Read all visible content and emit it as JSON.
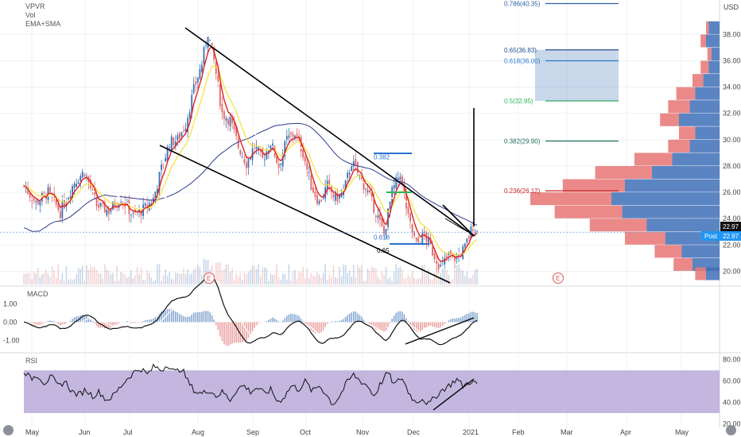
{
  "header": {
    "symbol": "VPVR",
    "vol": "Vol",
    "ema": "EMA+SMA"
  },
  "colors": {
    "up": "#3a6fb5",
    "down": "#e06666",
    "ema_fast": "#e0201e",
    "ema_slow": "#f2e233",
    "sma_short": "#ffffff",
    "sma_long": "#2f3a8f",
    "rsi_band": "#b9a9d9",
    "vp_up": "#3e6fb8",
    "vp_down": "#e77474"
  },
  "chart_data": [
    {
      "type": "candlestick",
      "x_ticks": [
        "May",
        "Jun",
        "Jul",
        "Aug",
        "Sep",
        "Oct",
        "Nov",
        "Dec",
        "2021",
        "Feb",
        "Mar",
        "Apr",
        "May"
      ],
      "y_ticks": [
        20.0,
        22.0,
        24.0,
        26.0,
        28.0,
        30.0,
        32.0,
        34.0,
        36.0,
        38.0
      ],
      "ylim": [
        19,
        40.5
      ],
      "axis_label": "USD",
      "last_price": "22.97",
      "post_label": "Post",
      "post_price": "22.97",
      "price_path": [
        [
          0,
          26.5
        ],
        [
          6,
          25.2
        ],
        [
          12,
          26.0
        ],
        [
          18,
          24.5
        ],
        [
          25,
          26.8
        ],
        [
          30,
          27.6
        ],
        [
          36,
          25.0
        ],
        [
          42,
          24.6
        ],
        [
          48,
          25.6
        ],
        [
          54,
          24.2
        ],
        [
          60,
          24.8
        ],
        [
          64,
          25.5
        ],
        [
          68,
          27.8
        ],
        [
          72,
          29.8
        ],
        [
          76,
          30.0
        ],
        [
          80,
          31.2
        ],
        [
          84,
          33.8
        ],
        [
          88,
          35.8
        ],
        [
          91,
          38.2
        ],
        [
          94,
          36.0
        ],
        [
          98,
          32.0
        ],
        [
          102,
          31.5
        ],
        [
          106,
          29.5
        ],
        [
          110,
          28.2
        ],
        [
          114,
          29.5
        ],
        [
          118,
          28.5
        ],
        [
          122,
          29.8
        ],
        [
          126,
          28.0
        ],
        [
          130,
          30.0
        ],
        [
          134,
          30.5
        ],
        [
          138,
          29.0
        ],
        [
          142,
          26.5
        ],
        [
          146,
          25.2
        ],
        [
          150,
          26.5
        ],
        [
          154,
          25.5
        ],
        [
          158,
          26.0
        ],
        [
          162,
          28.3
        ],
        [
          166,
          27.2
        ],
        [
          170,
          26.0
        ],
        [
          174,
          24.5
        ],
        [
          178,
          22.8
        ],
        [
          182,
          26.0
        ],
        [
          186,
          27.5
        ],
        [
          190,
          24.0
        ],
        [
          194,
          22.0
        ],
        [
          198,
          22.8
        ],
        [
          202,
          21.5
        ],
        [
          206,
          20.3
        ],
        [
          210,
          21.2
        ],
        [
          214,
          21.0
        ],
        [
          218,
          21.8
        ],
        [
          222,
          23.5
        ],
        [
          224,
          22.97
        ]
      ],
      "fib_levels": [
        {
          "label": "0.786(40.35)",
          "value": 40.35,
          "color": "#2a5fa8"
        },
        {
          "label": "0.65(36.83)",
          "value": 36.83,
          "color": "#1f4c91"
        },
        {
          "label": "0.618(36.00)",
          "value": 36.0,
          "color": "#2a7bd1"
        },
        {
          "label": "0.5(32.95)",
          "value": 32.95,
          "color": "#2fb457"
        },
        {
          "label": "0.382(29.90)",
          "value": 29.9,
          "color": "#1d6e5c"
        },
        {
          "label": "0.236(26.12)",
          "value": 26.12,
          "color": "#cc2222"
        }
      ],
      "inner_labels": [
        {
          "label": "0.382",
          "value": 28.7
        },
        {
          "label": "0.618",
          "value": 22.6
        },
        {
          "label": "0.65",
          "value": 21.6
        }
      ],
      "earnings_marker": "E"
    },
    {
      "type": "line",
      "title": "MACD",
      "y_ticks": [
        "1.00",
        "0.00",
        "-1.00"
      ],
      "ylim": [
        -1.6,
        1.9
      ]
    },
    {
      "type": "line",
      "title": "RSI",
      "y_ticks": [
        "80.00",
        "60.00",
        "40.00",
        "20.00"
      ],
      "ylim": [
        18,
        85
      ],
      "band": [
        30,
        70
      ],
      "values": [
        70,
        62,
        66,
        58,
        64,
        55,
        60,
        50,
        47,
        52,
        46,
        50,
        42,
        46,
        54,
        62,
        68,
        72,
        66,
        74,
        70,
        76,
        68,
        72,
        58,
        50,
        48,
        52,
        46,
        50,
        42,
        52,
        56,
        50,
        54,
        48,
        52,
        40,
        46,
        56,
        52,
        60,
        50,
        56,
        48,
        38,
        46,
        58,
        66,
        60,
        56,
        46,
        58,
        68,
        56,
        64,
        50,
        40,
        44,
        38,
        46,
        52,
        56,
        62,
        55,
        60,
        57
      ]
    }
  ]
}
